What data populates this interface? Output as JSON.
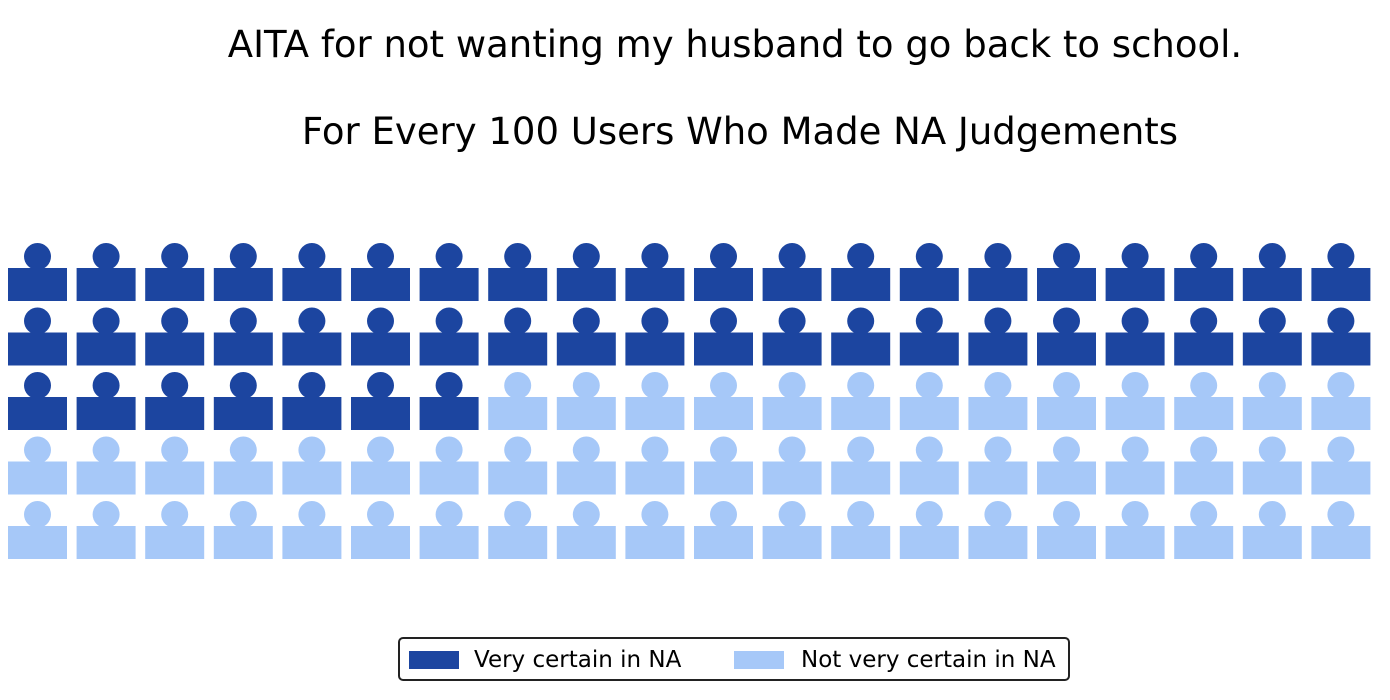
{
  "title": "AITA for not wanting my husband to go back to school.",
  "subtitle": "For Every 100 Users Who Made NA Judgements",
  "colors": {
    "very_certain": "#1c45a0",
    "not_very_certain": "#a6c8f8"
  },
  "legend": {
    "very_certain": "Very certain in NA",
    "not_very_certain": "Not very certain in NA"
  },
  "chart_data": {
    "type": "waffle",
    "icon": "person-icon",
    "total": 100,
    "rows": 5,
    "columns": 20,
    "categories": [
      "Very certain in NA",
      "Not very certain in NA"
    ],
    "values": [
      47,
      53
    ],
    "title": "AITA for not wanting my husband to go back to school.",
    "subtitle": "For Every 100 Users Who Made NA Judgements",
    "legend_position": "bottom-center",
    "grid": false
  }
}
